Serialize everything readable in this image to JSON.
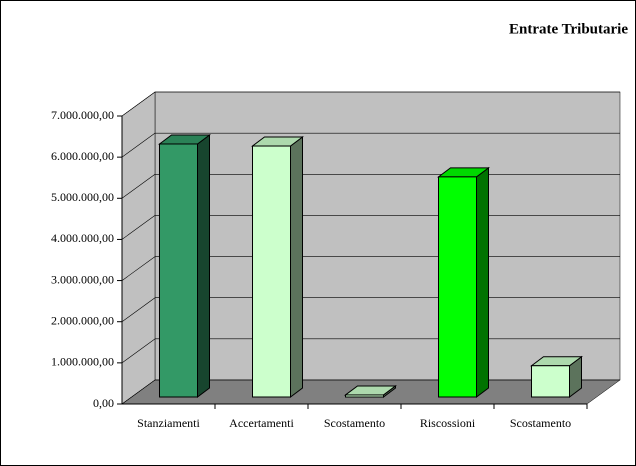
{
  "chart_data": {
    "type": "bar3d",
    "title": "Entrate Tributarie",
    "categories": [
      "Stanziamenti",
      "Accertamenti",
      "Scostamento",
      "Riscossioni",
      "Scostamento"
    ],
    "values": [
      6150000,
      6100000,
      50000,
      5350000,
      760000
    ],
    "colors": [
      "#339966",
      "#ccffcc",
      "#ccffcc",
      "#00ff00",
      "#ccffcc"
    ],
    "ylim": [
      0,
      7000000
    ],
    "yticks": [
      {
        "value": 0,
        "label": "0,00"
      },
      {
        "value": 1000000,
        "label": "1.000.000,00"
      },
      {
        "value": 2000000,
        "label": "2.000.000,00"
      },
      {
        "value": 3000000,
        "label": "3.000.000,00"
      },
      {
        "value": 4000000,
        "label": "4.000.000,00"
      },
      {
        "value": 5000000,
        "label": "5.000.000,00"
      },
      {
        "value": 6000000,
        "label": "6.000.000,00"
      },
      {
        "value": 7000000,
        "label": "7.000.000,00"
      }
    ],
    "grid": true
  }
}
